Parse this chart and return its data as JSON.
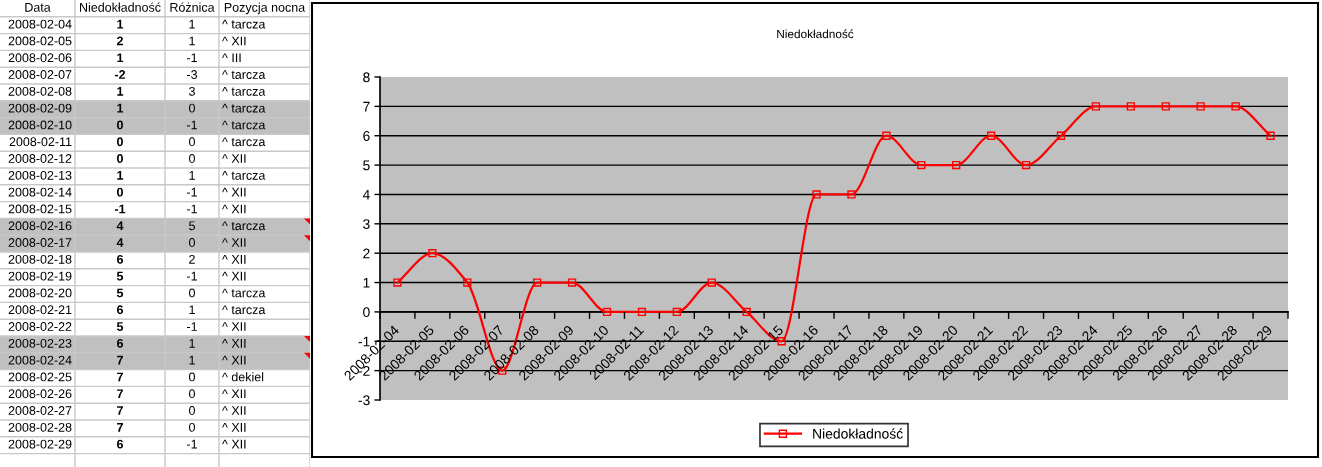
{
  "chart_data": [
    {
      "type": "heatmap",
      "ylabel": "Data",
      "y2label": "Pozycja nocna",
      "categories": [
        "Niedokładność",
        "Różnica"
      ],
      "y_categories": [
        "2008-02-04",
        "2008-02-05",
        "2008-02-06",
        "2008-02-07",
        "2008-02-08",
        "2008-02-09",
        "2008-02-10",
        "2008-02-11",
        "2008-02-12",
        "2008-02-13",
        "2008-02-14",
        "2008-02-15",
        "2008-02-16",
        "2008-02-17",
        "2008-02-18",
        "2008-02-19",
        "2008-02-20",
        "2008-02-21",
        "2008-02-22",
        "2008-02-23",
        "2008-02-24",
        "2008-02-25",
        "2008-02-26",
        "2008-02-27",
        "2008-02-28",
        "2008-02-29"
      ],
      "y2_categories": [
        "^ tarcza",
        "^ XII",
        "^ III",
        "^ tarcza",
        "^ tarcza",
        "^ tarcza",
        "^ tarcza",
        "^ tarcza",
        "^ XII",
        "^ tarcza",
        "^ XII",
        "^ XII",
        "^ tarcza",
        "^ XII",
        "^ XII",
        "^ XII",
        "^ tarcza",
        "^ tarcza",
        "^ XII",
        "^ XII",
        "^ XII",
        "^ dekiel",
        "^ XII",
        "^ XII",
        "^ XII",
        "^ XII"
      ],
      "cells": [
        [
          1,
          1
        ],
        [
          2,
          1
        ],
        [
          1,
          -1
        ],
        [
          -2,
          -3
        ],
        [
          1,
          3
        ],
        [
          1,
          0
        ],
        [
          0,
          -1
        ],
        [
          0,
          0
        ],
        [
          0,
          0
        ],
        [
          1,
          1
        ],
        [
          0,
          -1
        ],
        [
          -1,
          -1
        ],
        [
          4,
          5
        ],
        [
          4,
          0
        ],
        [
          6,
          2
        ],
        [
          5,
          -1
        ],
        [
          5,
          0
        ],
        [
          6,
          1
        ],
        [
          5,
          -1
        ],
        [
          6,
          1
        ],
        [
          7,
          1
        ],
        [
          7,
          0
        ],
        [
          7,
          0
        ],
        [
          7,
          0
        ],
        [
          7,
          0
        ],
        [
          6,
          -1
        ]
      ],
      "data_labels": true,
      "bands": [
        {
          "axis": "y",
          "from": "2008-02-09",
          "to": "2008-02-10",
          "color": "#c0c0c0"
        },
        {
          "axis": "y",
          "from": "2008-02-16",
          "to": "2008-02-17",
          "color": "#c0c0c0"
        },
        {
          "axis": "y",
          "from": "2008-02-23",
          "to": "2008-02-24",
          "color": "#c0c0c0"
        }
      ]
    },
    {
      "type": "line",
      "title": "Niedokładność",
      "categories": [
        "2008-02-04",
        "2008-02-05",
        "2008-02-06",
        "2008-02-07",
        "2008-02-08",
        "2008-02-09",
        "2008-02-10",
        "2008-02-11",
        "2008-02-12",
        "2008-02-13",
        "2008-02-14",
        "2008-02-15",
        "2008-02-16",
        "2008-02-17",
        "2008-02-18",
        "2008-02-19",
        "2008-02-20",
        "2008-02-21",
        "2008-02-22",
        "2008-02-23",
        "2008-02-24",
        "2008-02-25",
        "2008-02-26",
        "2008-02-27",
        "2008-02-28",
        "2008-02-29"
      ],
      "series": [
        {
          "name": "Niedokładność",
          "color": "#ff0000",
          "values": [
            1,
            2,
            1,
            -2,
            1,
            1,
            0,
            0,
            0,
            1,
            0,
            -1,
            4,
            4,
            6,
            5,
            5,
            6,
            5,
            6,
            7,
            7,
            7,
            7,
            7,
            6
          ]
        }
      ],
      "ylim": [
        -3,
        8
      ],
      "yticks": [
        -3,
        -2,
        -1,
        0,
        1,
        2,
        3,
        4,
        5,
        6,
        7,
        8
      ],
      "grid": "y",
      "legend": "bottom",
      "marker": "square",
      "line_style": "solid"
    }
  ]
}
